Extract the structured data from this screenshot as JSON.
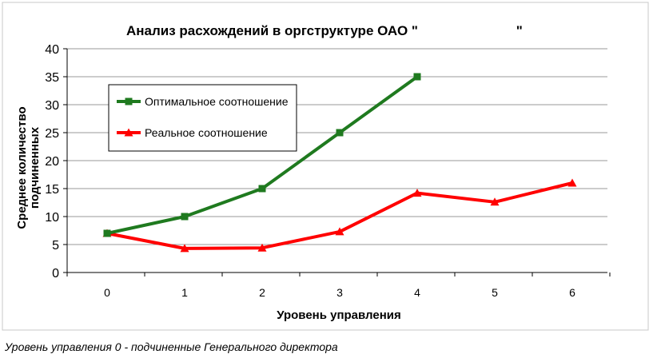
{
  "chart_data": {
    "type": "line",
    "title": "Анализ расхождений в оргструктуре ОАО \"                          \"",
    "xlabel": "Уровень управления",
    "ylabel_lines": [
      "Среднее количество",
      "подчиненных"
    ],
    "xlim": [
      0,
      6
    ],
    "ylim": [
      0,
      40
    ],
    "x_ticks": [
      "0",
      "1",
      "2",
      "3",
      "4",
      "5",
      "6"
    ],
    "y_ticks": [
      "0",
      "5",
      "10",
      "15",
      "20",
      "25",
      "30",
      "35",
      "40"
    ],
    "grid": "horizontal",
    "legend_position": "upper-left inside",
    "series": [
      {
        "name": "Оптимальное соотношение",
        "color": "#1f7a1f",
        "marker": "square",
        "x": [
          0,
          1,
          2,
          3,
          4
        ],
        "values": [
          7,
          10,
          15,
          25,
          35
        ]
      },
      {
        "name": "Реальное соотношение",
        "color": "#ff0000",
        "marker": "triangle",
        "x": [
          0,
          1,
          2,
          3,
          4,
          5,
          6
        ],
        "values": [
          7,
          4.3,
          4.4,
          7.3,
          14.2,
          12.6,
          16
        ]
      }
    ]
  },
  "footnote": "Уровень управления 0 - подчиненные Генерального директора"
}
